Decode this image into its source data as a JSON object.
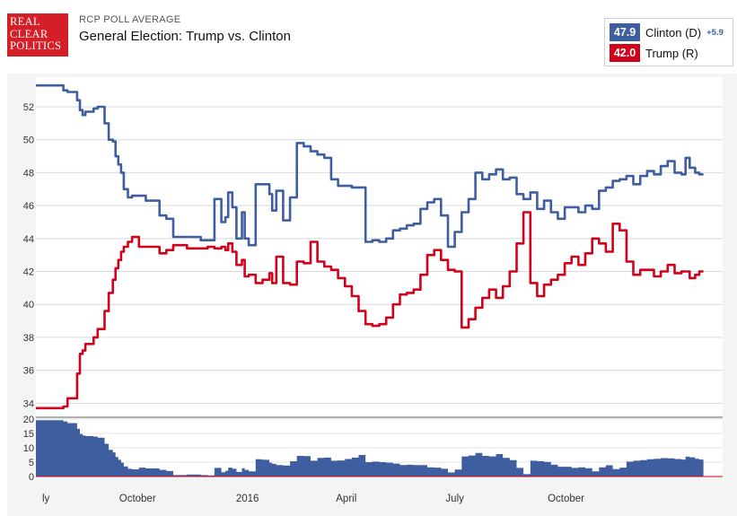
{
  "header": {
    "logo_lines": [
      "REAL",
      "CLEAR",
      "POLITICS"
    ],
    "supertitle": "RCP POLL AVERAGE",
    "title": "General Election: Trump vs. Clinton"
  },
  "legend": {
    "items": [
      {
        "value": "47.9",
        "name": "Clinton (D)",
        "spread": "+5.9",
        "color": "#3f5ea0"
      },
      {
        "value": "42.0",
        "name": "Trump (R)",
        "spread": "",
        "color": "#d0021b"
      }
    ]
  },
  "chart_data": [
    {
      "type": "line",
      "title": "",
      "xlabel": "",
      "ylabel": "",
      "x_tick_labels": [
        "ly",
        "October",
        "2016",
        "April",
        "July",
        "October"
      ],
      "ylim": [
        33.2,
        53.8
      ],
      "y_ticks": [
        34,
        36,
        38,
        40,
        42,
        44,
        46,
        48,
        50,
        52
      ],
      "grid": "horizontal",
      "legend_placement": "top-right",
      "series": [
        {
          "color": "#3f5ea0",
          "x": [
            0,
            1.5,
            2.0,
            2.3,
            3.0,
            3.2,
            3.4,
            3.6,
            4.2,
            4.5,
            5.0,
            5.3,
            5.6,
            5.8,
            6.0,
            6.2,
            6.4,
            6.7,
            7.0,
            7.5,
            8.0,
            9.0,
            9.5,
            10.0,
            11.0,
            12.0,
            12.5,
            13.0,
            13.5,
            13.8,
            14.0,
            14.3,
            14.6,
            15.0,
            15.2,
            15.5,
            16.0,
            16.5,
            17.0,
            17.2,
            17.5,
            18.0,
            18.5,
            19.0,
            19.5,
            20.0,
            20.5,
            21.0,
            21.5,
            22.0,
            22.5,
            23.0,
            23.5,
            24.0,
            24.5,
            25.0,
            25.5,
            26.0,
            26.5,
            27.0,
            27.5,
            28.0,
            28.5,
            29.0,
            29.5,
            30.0,
            30.5,
            31.0,
            31.5,
            32.0,
            32.5,
            33.0,
            33.5,
            34.0,
            34.5,
            35.0,
            35.5,
            36.0,
            36.5,
            37.0,
            37.5,
            38.0,
            38.5,
            39.0,
            39.5,
            40.0,
            40.5,
            41.0,
            41.5,
            42.0,
            42.5,
            43.0,
            43.5,
            44.0,
            44.5,
            45.0,
            45.5,
            46.0,
            46.5,
            47.0,
            47.3,
            47.6,
            48.0,
            48.3,
            48.6
          ],
          "values": [
            53.3,
            53.3,
            53.0,
            52.9,
            52.4,
            51.8,
            51.5,
            51.7,
            51.9,
            52.0,
            51.0,
            50.0,
            49.9,
            49.0,
            48.5,
            48.0,
            47.0,
            46.5,
            46.6,
            46.6,
            46.3,
            45.4,
            45.2,
            44.1,
            44.1,
            43.9,
            43.9,
            46.4,
            45.0,
            45.3,
            46.8,
            45.9,
            44.0,
            45.6,
            44.0,
            43.6,
            47.3,
            47.3,
            46.7,
            45.7,
            46.9,
            45.1,
            46.5,
            49.8,
            49.6,
            49.3,
            49.1,
            48.9,
            47.6,
            47.2,
            47.2,
            47.1,
            47.1,
            43.8,
            43.9,
            43.8,
            44.0,
            44.5,
            44.6,
            44.8,
            44.9,
            45.8,
            46.2,
            46.4,
            45.4,
            43.5,
            44.4,
            45.6,
            46.4,
            48.0,
            47.6,
            47.9,
            48.2,
            47.6,
            47.7,
            46.7,
            46.4,
            46.8,
            45.8,
            46.3,
            45.6,
            45.2,
            45.9,
            45.9,
            45.6,
            46.0,
            45.8,
            46.9,
            47.1,
            47.5,
            47.6,
            47.8,
            47.3,
            47.8,
            48.1,
            47.9,
            48.4,
            48.7,
            48.0,
            47.9,
            48.9,
            48.3,
            48.0,
            47.9,
            47.9
          ]
        },
        {
          "color": "#d0021b",
          "x": [
            0,
            1.5,
            2.0,
            2.3,
            3.0,
            3.2,
            3.4,
            3.6,
            4.2,
            4.5,
            5.0,
            5.3,
            5.6,
            5.8,
            6.0,
            6.2,
            6.4,
            6.7,
            7.0,
            7.5,
            8.0,
            9.0,
            9.5,
            10.0,
            11.0,
            12.0,
            12.5,
            13.0,
            13.5,
            13.8,
            14.0,
            14.3,
            14.6,
            15.0,
            15.2,
            15.5,
            16.0,
            16.5,
            17.0,
            17.2,
            17.5,
            18.0,
            18.5,
            19.0,
            19.5,
            20.0,
            20.5,
            21.0,
            21.5,
            22.0,
            22.5,
            23.0,
            23.5,
            24.0,
            24.5,
            25.0,
            25.5,
            26.0,
            26.5,
            27.0,
            27.5,
            28.0,
            28.5,
            29.0,
            29.5,
            30.0,
            30.5,
            31.0,
            31.5,
            32.0,
            32.5,
            33.0,
            33.5,
            34.0,
            34.5,
            35.0,
            35.5,
            36.0,
            36.5,
            37.0,
            37.5,
            38.0,
            38.5,
            39.0,
            39.5,
            40.0,
            40.5,
            41.0,
            41.5,
            42.0,
            42.5,
            43.0,
            43.5,
            44.0,
            44.5,
            45.0,
            45.5,
            46.0,
            46.5,
            47.0,
            47.3,
            47.6,
            48.0,
            48.3,
            48.6
          ],
          "values": [
            33.7,
            33.7,
            33.8,
            34.3,
            35.8,
            37.0,
            37.2,
            37.6,
            38.0,
            38.5,
            39.6,
            40.7,
            41.5,
            42.2,
            42.7,
            43.2,
            43.5,
            43.8,
            44.1,
            43.5,
            43.5,
            43.1,
            43.3,
            43.6,
            43.4,
            43.4,
            43.5,
            43.4,
            43.5,
            43.3,
            43.7,
            43.2,
            42.4,
            42.7,
            41.7,
            41.8,
            41.3,
            41.5,
            41.9,
            41.3,
            42.9,
            41.3,
            41.2,
            42.6,
            42.5,
            43.8,
            42.6,
            42.3,
            42.1,
            41.6,
            41.1,
            40.5,
            39.6,
            38.8,
            38.7,
            38.8,
            39.2,
            40.0,
            40.6,
            40.7,
            40.9,
            41.8,
            43.0,
            43.3,
            42.7,
            42.1,
            42.0,
            38.6,
            39.1,
            39.8,
            40.4,
            40.9,
            40.4,
            41.1,
            42.0,
            43.7,
            45.6,
            41.3,
            40.5,
            41.2,
            41.5,
            41.8,
            42.5,
            42.9,
            42.4,
            43.1,
            44.0,
            43.7,
            43.2,
            44.9,
            44.5,
            42.6,
            41.8,
            42.1,
            42.1,
            41.7,
            42.0,
            42.4,
            41.9,
            42.0,
            42.0,
            41.6,
            41.8,
            42.0,
            42.0
          ]
        }
      ]
    },
    {
      "type": "area",
      "title": "",
      "xlabel": "",
      "ylabel": "",
      "ylim": [
        0,
        20
      ],
      "y_ticks": [
        0,
        5,
        10,
        15,
        20
      ],
      "grid": "horizontal",
      "series": [
        {
          "color": "#3f5ea0",
          "x": [
            0,
            1.5,
            2.0,
            2.3,
            3.0,
            3.2,
            3.4,
            3.6,
            4.2,
            4.5,
            5.0,
            5.3,
            5.6,
            5.8,
            6.0,
            6.2,
            6.4,
            6.7,
            7.0,
            7.5,
            8.0,
            9.0,
            9.5,
            10.0,
            11.0,
            12.0,
            12.5,
            13.0,
            13.5,
            13.8,
            14.0,
            14.3,
            14.6,
            15.0,
            15.2,
            15.5,
            16.0,
            16.5,
            17.0,
            17.2,
            17.5,
            18.0,
            18.5,
            19.0,
            19.5,
            20.0,
            20.5,
            21.0,
            21.5,
            22.0,
            22.5,
            23.0,
            23.5,
            24.0,
            24.5,
            25.0,
            25.5,
            26.0,
            26.5,
            27.0,
            27.5,
            28.0,
            28.5,
            29.0,
            29.5,
            30.0,
            30.5,
            31.0,
            31.5,
            32.0,
            32.5,
            33.0,
            33.5,
            34.0,
            34.5,
            35.0,
            35.5,
            36.0,
            36.5,
            37.0,
            37.5,
            38.0,
            38.5,
            39.0,
            39.5,
            40.0,
            40.5,
            41.0,
            41.5,
            42.0,
            42.5,
            43.0,
            43.5,
            44.0,
            44.5,
            45.0,
            45.5,
            46.0,
            46.5,
            47.0,
            47.3,
            47.6,
            48.0,
            48.3,
            48.6
          ],
          "values": [
            19.6,
            19.6,
            19.2,
            18.6,
            16.6,
            14.8,
            14.3,
            14.1,
            13.9,
            13.5,
            11.4,
            9.3,
            8.4,
            6.8,
            5.8,
            4.8,
            3.5,
            2.7,
            2.5,
            3.1,
            2.8,
            2.3,
            1.9,
            0.5,
            0.7,
            0.5,
            0.4,
            3.0,
            1.5,
            2.0,
            3.1,
            2.7,
            1.6,
            2.9,
            2.3,
            1.8,
            6.0,
            5.8,
            4.8,
            4.4,
            4.0,
            3.8,
            5.3,
            7.2,
            7.1,
            5.5,
            6.5,
            6.6,
            5.5,
            5.6,
            6.1,
            6.6,
            7.5,
            5.0,
            5.2,
            5.0,
            4.8,
            4.5,
            4.0,
            4.1,
            4.0,
            4.0,
            3.2,
            3.1,
            2.7,
            1.4,
            2.4,
            7.0,
            7.3,
            8.2,
            7.2,
            7.0,
            7.8,
            6.5,
            5.7,
            3.0,
            0.8,
            5.5,
            5.3,
            5.1,
            4.1,
            3.4,
            3.4,
            3.0,
            3.2,
            2.9,
            1.8,
            3.2,
            3.9,
            2.6,
            3.1,
            5.2,
            5.5,
            5.7,
            6.0,
            6.2,
            6.4,
            6.3,
            6.1,
            5.9,
            6.9,
            6.7,
            6.2,
            5.9,
            5.9
          ]
        }
      ]
    }
  ]
}
